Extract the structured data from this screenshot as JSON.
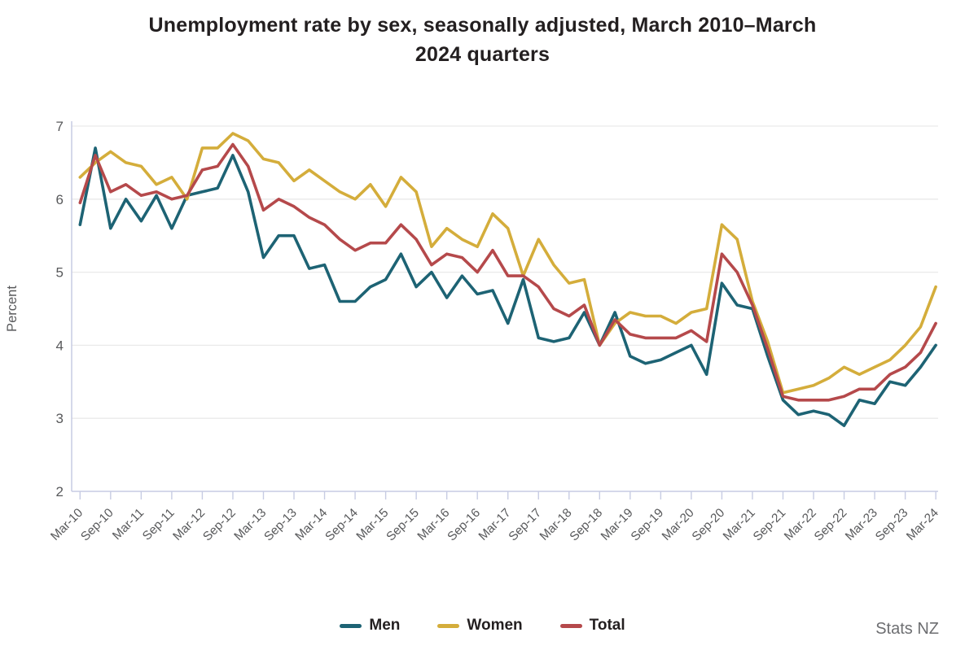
{
  "title": {
    "line1": "Unemployment rate by sex, seasonally adjusted, March 2010–March",
    "line2": "2024 quarters"
  },
  "y_axis": {
    "title": "Percent",
    "ticks": [
      7,
      6,
      5,
      4,
      3,
      2
    ]
  },
  "x_axis": {
    "tick_labels": [
      "Mar-10",
      "Sep-10",
      "Mar-11",
      "Sep-11",
      "Mar-12",
      "Sep-12",
      "Mar-13",
      "Sep-13",
      "Mar-14",
      "Sep-14",
      "Mar-15",
      "Sep-15",
      "Mar-16",
      "Sep-16",
      "Mar-17",
      "Sep-17",
      "Mar-18",
      "Sep-18",
      "Mar-19",
      "Sep-19",
      "Mar-20",
      "Sep-20",
      "Mar-21",
      "Sep-21",
      "Mar-22",
      "Sep-22",
      "Mar-23",
      "Sep-23",
      "Mar-24"
    ]
  },
  "legend": {
    "items": [
      {
        "label": "Men",
        "color": "#1d6374"
      },
      {
        "label": "Women",
        "color": "#d4ad3b"
      },
      {
        "label": "Total",
        "color": "#b5494b"
      }
    ]
  },
  "footer": {
    "source": "Stats NZ"
  },
  "colors": {
    "grid": "#e9e9e9",
    "axis": "#c7cce3",
    "axis_text": "#58595b",
    "title_text": "#231f20"
  },
  "chart_data": {
    "type": "line",
    "title": "Unemployment rate by sex, seasonally adjusted, March 2010–March 2024 quarters",
    "xlabel": "",
    "ylabel": "Percent",
    "ylim": [
      2,
      7
    ],
    "grid": true,
    "legend_position": "bottom",
    "x": [
      "Mar-10",
      "Jun-10",
      "Sep-10",
      "Dec-10",
      "Mar-11",
      "Jun-11",
      "Sep-11",
      "Dec-11",
      "Mar-12",
      "Jun-12",
      "Sep-12",
      "Dec-12",
      "Mar-13",
      "Jun-13",
      "Sep-13",
      "Dec-13",
      "Mar-14",
      "Jun-14",
      "Sep-14",
      "Dec-14",
      "Mar-15",
      "Jun-15",
      "Sep-15",
      "Dec-15",
      "Mar-16",
      "Jun-16",
      "Sep-16",
      "Dec-16",
      "Mar-17",
      "Jun-17",
      "Sep-17",
      "Dec-17",
      "Mar-18",
      "Jun-18",
      "Sep-18",
      "Dec-18",
      "Mar-19",
      "Jun-19",
      "Sep-19",
      "Dec-19",
      "Mar-20",
      "Jun-20",
      "Sep-20",
      "Dec-20",
      "Mar-21",
      "Jun-21",
      "Sep-21",
      "Dec-21",
      "Mar-22",
      "Jun-22",
      "Sep-22",
      "Dec-22",
      "Mar-23",
      "Jun-23",
      "Sep-23",
      "Dec-23",
      "Mar-24"
    ],
    "series": [
      {
        "name": "Men",
        "color": "#1d6374",
        "values": [
          5.65,
          6.7,
          5.6,
          6.0,
          5.7,
          6.05,
          5.6,
          6.05,
          6.1,
          6.15,
          6.6,
          6.1,
          5.2,
          5.5,
          5.5,
          5.05,
          5.1,
          4.6,
          4.6,
          4.8,
          4.9,
          5.25,
          4.8,
          5.0,
          4.65,
          4.95,
          4.7,
          4.75,
          4.3,
          4.9,
          4.1,
          4.05,
          4.1,
          4.45,
          4.0,
          4.45,
          3.85,
          3.75,
          3.8,
          3.9,
          4.0,
          3.6,
          4.85,
          4.55,
          4.5,
          3.85,
          3.25,
          3.05,
          3.1,
          3.05,
          2.9,
          3.25,
          3.2,
          3.5,
          3.45,
          3.7,
          4.0
        ]
      },
      {
        "name": "Women",
        "color": "#d4ad3b",
        "values": [
          6.3,
          6.5,
          6.65,
          6.5,
          6.45,
          6.2,
          6.3,
          6.0,
          6.7,
          6.7,
          6.9,
          6.8,
          6.55,
          6.5,
          6.25,
          6.4,
          6.25,
          6.1,
          6.0,
          6.2,
          5.9,
          6.3,
          6.1,
          5.35,
          5.6,
          5.45,
          5.35,
          5.8,
          5.6,
          4.95,
          5.45,
          5.1,
          4.85,
          4.9,
          4.0,
          4.3,
          4.45,
          4.4,
          4.4,
          4.3,
          4.45,
          4.5,
          5.65,
          5.45,
          4.6,
          4.05,
          3.35,
          3.4,
          3.45,
          3.55,
          3.7,
          3.6,
          3.7,
          3.8,
          4.0,
          4.25,
          4.8
        ]
      },
      {
        "name": "Total",
        "color": "#b5494b",
        "values": [
          5.95,
          6.6,
          6.1,
          6.2,
          6.05,
          6.1,
          6.0,
          6.05,
          6.4,
          6.45,
          6.75,
          6.45,
          5.85,
          6.0,
          5.9,
          5.75,
          5.65,
          5.45,
          5.3,
          5.4,
          5.4,
          5.65,
          5.45,
          5.1,
          5.25,
          5.2,
          5.0,
          5.3,
          4.95,
          4.95,
          4.8,
          4.5,
          4.4,
          4.55,
          4.0,
          4.35,
          4.15,
          4.1,
          4.1,
          4.1,
          4.2,
          4.05,
          5.25,
          5.0,
          4.55,
          3.95,
          3.3,
          3.25,
          3.25,
          3.25,
          3.3,
          3.4,
          3.4,
          3.6,
          3.7,
          3.9,
          4.3
        ]
      }
    ]
  }
}
